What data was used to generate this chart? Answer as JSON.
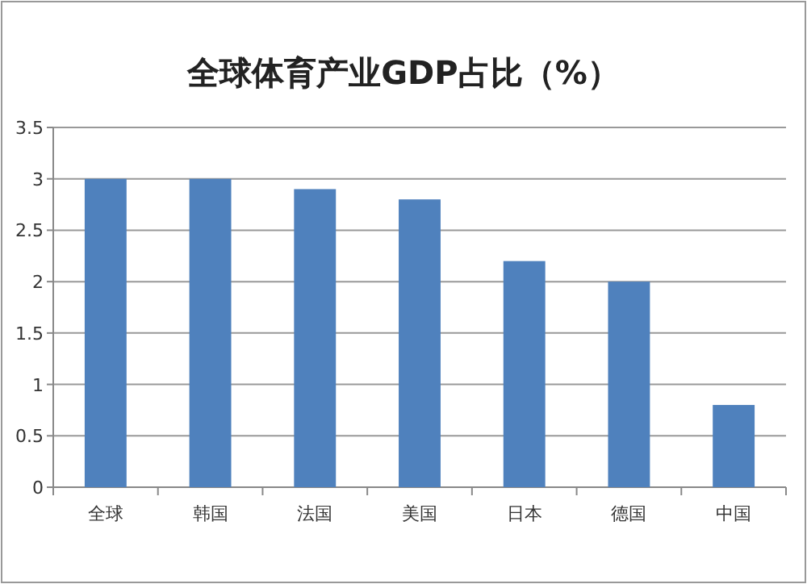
{
  "chart_data": {
    "type": "bar",
    "title": "全球体育产业GDP占比（%）",
    "categories": [
      "全球",
      "韩国",
      "法国",
      "美国",
      "日本",
      "德国",
      "中国"
    ],
    "values": [
      3,
      3,
      2.9,
      2.8,
      2.2,
      2.0,
      0.8
    ],
    "color": "#4f81bd",
    "ylim": [
      0,
      3.5
    ],
    "yticks": [
      0,
      0.5,
      1,
      1.5,
      2,
      2.5,
      3,
      3.5
    ],
    "grid": "y"
  }
}
